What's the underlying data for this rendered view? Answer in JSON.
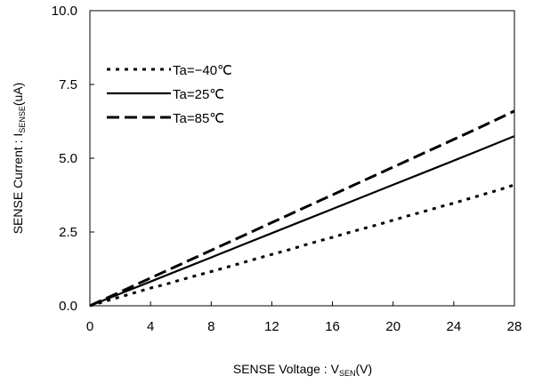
{
  "chart_data": {
    "type": "line",
    "title": "",
    "xlabel": {
      "main": "SENSE Voltage : V",
      "sub": "SEN",
      "suffix": "(V)"
    },
    "ylabel": {
      "main": "SENSE Current : I",
      "sub": "SENSE",
      "suffix": "(uA)"
    },
    "xlim": [
      0,
      28
    ],
    "ylim": [
      0,
      10
    ],
    "x_ticks": [
      "0",
      "4",
      "8",
      "12",
      "16",
      "20",
      "24",
      "28"
    ],
    "y_ticks": [
      "0.0",
      "2.5",
      "5.0",
      "7.5",
      "10.0"
    ],
    "x_tick_values": [
      0,
      4,
      8,
      12,
      16,
      20,
      24,
      28
    ],
    "y_tick_values": [
      0,
      2.5,
      5.0,
      7.5,
      10.0
    ],
    "grid": false,
    "legend_position": "top-left",
    "series": [
      {
        "name": "Ta=−40℃",
        "style": "dotted",
        "color": "#000000",
        "x": [
          0,
          1,
          2,
          3,
          4,
          5,
          6,
          7,
          8,
          9,
          10,
          11,
          12,
          13,
          14,
          15,
          16,
          17,
          18,
          19,
          20,
          21,
          22,
          23,
          24,
          25,
          26,
          27,
          28
        ],
        "y": [
          0.0,
          0.15,
          0.3,
          0.45,
          0.6,
          0.73,
          0.88,
          1.02,
          1.16,
          1.3,
          1.45,
          1.6,
          1.74,
          1.88,
          2.03,
          2.18,
          2.32,
          2.47,
          2.61,
          2.75,
          2.9,
          3.05,
          3.19,
          3.34,
          3.48,
          3.63,
          3.78,
          3.93,
          4.1
        ]
      },
      {
        "name": "Ta=25℃",
        "style": "solid",
        "color": "#000000",
        "x": [
          0,
          2,
          4,
          6,
          8,
          10,
          12,
          14,
          16,
          18,
          20,
          22,
          24,
          26,
          28
        ],
        "y": [
          0.0,
          0.41,
          0.82,
          1.23,
          1.64,
          2.05,
          2.46,
          2.87,
          3.28,
          3.69,
          4.1,
          4.51,
          4.92,
          5.33,
          5.75
        ]
      },
      {
        "name": "Ta=85℃",
        "style": "dashed",
        "color": "#000000",
        "x": [
          0,
          2,
          4,
          6,
          8,
          10,
          12,
          14,
          16,
          18,
          20,
          22,
          24,
          26,
          28
        ],
        "y": [
          0.0,
          0.47,
          0.94,
          1.41,
          1.88,
          2.35,
          2.82,
          3.29,
          3.76,
          4.23,
          4.7,
          5.17,
          5.64,
          6.11,
          6.6
        ]
      }
    ]
  }
}
